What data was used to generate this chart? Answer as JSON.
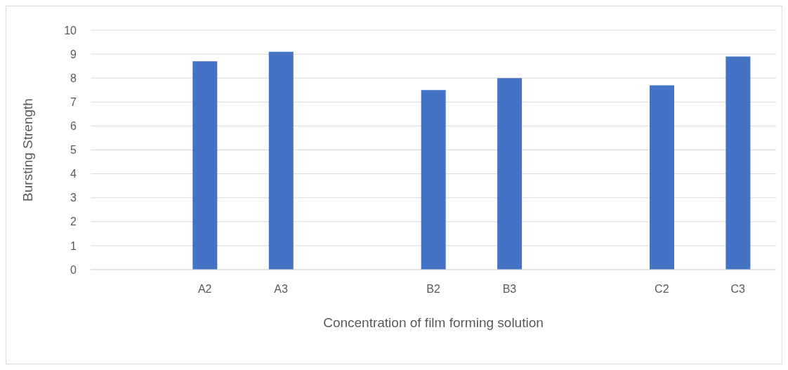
{
  "chart_data": {
    "type": "bar",
    "xlabel": "Concentration of film forming solution",
    "ylabel": "Bursting Strength",
    "categories": [
      null,
      "A2",
      "A3",
      null,
      "B2",
      "B3",
      null,
      "C2",
      "C3"
    ],
    "values": [
      null,
      8.7,
      9.1,
      null,
      7.5,
      8.0,
      null,
      7.7,
      8.9
    ],
    "color": "#4472c4",
    "ylim": [
      0,
      10
    ],
    "yticks": [
      0,
      1,
      2,
      3,
      4,
      5,
      6,
      7,
      8,
      9,
      10
    ],
    "grid": "y"
  }
}
